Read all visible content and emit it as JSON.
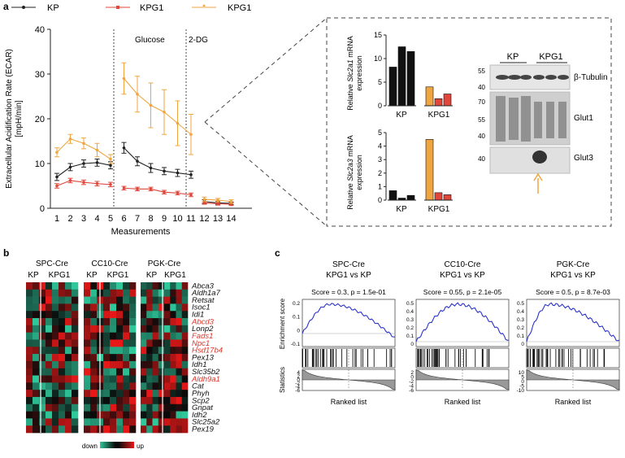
{
  "panel_labels": {
    "a": "a",
    "b": "b",
    "c": "c"
  },
  "colors": {
    "kp": "#222222",
    "kpg1_red": "#e0463a",
    "kpg1_orange": "#f0a640"
  },
  "ecar": {
    "legend": [
      "KP",
      "KPG1",
      "KPG1"
    ],
    "ylabel_line1": "Extracellular Acidification Rate (ECAR)",
    "ylabel_line2": "[mpH/min]",
    "xlabel": "Measurements",
    "phase_labels": [
      "Glucose",
      "2-DG"
    ],
    "yticks": [
      "0",
      "10",
      "20",
      "30",
      "40"
    ],
    "xticks": [
      "1",
      "2",
      "3",
      "4",
      "5",
      "6",
      "7",
      "8",
      "9",
      "10",
      "11",
      "12",
      "13",
      "14"
    ]
  },
  "chart_data": [
    {
      "type": "line",
      "xlabel": "Measurements",
      "ylabel": "Extracellular Acidification Rate (ECAR) [mpH/min]",
      "x": [
        1,
        2,
        3,
        4,
        5,
        6,
        7,
        8,
        9,
        10,
        11,
        12,
        13,
        14
      ],
      "ylim": [
        0,
        40
      ],
      "series": [
        {
          "name": "KP",
          "values": [
            7,
            9.2,
            10,
            10.2,
            9.6,
            13.5,
            10.5,
            9,
            8.3,
            7.9,
            7.5,
            1.5,
            1.2,
            1.1
          ],
          "errors": [
            0.8,
            0.8,
            0.8,
            0.8,
            0.8,
            1.2,
            1.0,
            1.0,
            0.8,
            0.8,
            0.8,
            0.4,
            0.3,
            0.3
          ]
        },
        {
          "name": "KPG1",
          "values": [
            5,
            6.2,
            5.8,
            5.5,
            5.3,
            4.5,
            4.3,
            4.3,
            3.6,
            3.4,
            3,
            1.2,
            1,
            0.9
          ],
          "errors": [
            0.5,
            0.5,
            0.5,
            0.5,
            0.5,
            0.4,
            0.4,
            0.4,
            0.4,
            0.4,
            0.4,
            0.3,
            0.3,
            0.3
          ]
        },
        {
          "name": "KPG1",
          "values": [
            12.5,
            15.5,
            14.5,
            13,
            11,
            29,
            25.5,
            23,
            21.5,
            19,
            16.5,
            2,
            1.8,
            1.5
          ],
          "errors": [
            1,
            1,
            1.2,
            1.5,
            1,
            3.5,
            4,
            5,
            5,
            5,
            4.5,
            0.5,
            0.4,
            0.4
          ]
        }
      ]
    },
    {
      "type": "bar",
      "ylabel": "Relative Slc2a1 mRNA expression",
      "categories": [
        "KP",
        "KP",
        "KP",
        "KPG1",
        "KPG1",
        "KPG1"
      ],
      "values": [
        8.2,
        12.5,
        11.5,
        4,
        1.5,
        2.5
      ],
      "ylim": [
        0,
        15
      ]
    },
    {
      "type": "bar",
      "ylabel": "Relative Slc2a3 mRNA expression",
      "categories": [
        "KP",
        "KP",
        "KP",
        "KPG1",
        "KPG1",
        "KPG1"
      ],
      "values": [
        0.7,
        0.15,
        0.35,
        4.5,
        0.55,
        0.4
      ],
      "ylim": [
        0,
        5
      ]
    },
    {
      "type": "line",
      "title": "SPC-Cre KPG1 vs KP",
      "ylabel": "Enrichment score",
      "annotation": "Score = 0.3, p = 1.5e-01",
      "yticks": [
        "0.2",
        "0.1",
        "0",
        "-0.1"
      ],
      "stat_yticks": [
        "4",
        "2",
        "0",
        "-2",
        "-4",
        "-6"
      ],
      "xlabel": "Ranked list"
    },
    {
      "type": "line",
      "title": "CC10-Cre KPG1 vs KP",
      "annotation": "Score = 0.55, p = 2.1e-05",
      "yticks": [
        "0.5",
        "0.4",
        "0.3",
        "0.2",
        "0.1",
        "0"
      ],
      "stat_yticks": [
        "2",
        "0",
        "-2",
        "-4",
        "-6"
      ],
      "xlabel": "Ranked list"
    },
    {
      "type": "line",
      "title": "PGK-Cre KPG1 vs KP",
      "annotation": "Score = 0.5, p = 8.7e-03",
      "yticks": [
        "0.5",
        "0.4",
        "0.3",
        "0.2",
        "0.1",
        "0"
      ],
      "stat_yticks": [
        "10",
        "5",
        "0",
        "-5",
        "-10"
      ],
      "xlabel": "Ranked list"
    }
  ],
  "bars": {
    "ylabel1_prefix": "Relative ",
    "ylabel1_gene": "Slc2a1",
    "ylabel1_suffix": " mRNA",
    "ylabel_line2": "expression",
    "ylabel2_prefix": "Relative ",
    "ylabel2_gene": "Slc2a3",
    "ylabel2_suffix": " mRNA",
    "yticks_top": [
      "0",
      "5",
      "10",
      "15"
    ],
    "yticks_bottom": [
      "0",
      "1",
      "2",
      "3",
      "4",
      "5"
    ],
    "xlabels": [
      "KP",
      "KPG1"
    ]
  },
  "western": {
    "groups": [
      "KP",
      "KPG1"
    ],
    "bands": [
      "β-Tubulin",
      "Glut1",
      "Glut3"
    ],
    "markers": [
      "55",
      "40",
      "70",
      "55",
      "40",
      "40"
    ]
  },
  "heatmap": {
    "groups": [
      "SPC-Cre",
      "CC10-Cre",
      "PGK-Cre"
    ],
    "subgroups": [
      "KP",
      "KPG1"
    ],
    "genes": [
      {
        "name": "Abca3",
        "highlight": false
      },
      {
        "name": "Aldh1a7",
        "highlight": false
      },
      {
        "name": "Retsat",
        "highlight": false
      },
      {
        "name": "Isoc1",
        "highlight": false
      },
      {
        "name": "Idi1",
        "highlight": false
      },
      {
        "name": "Abcd3",
        "highlight": true
      },
      {
        "name": "Lonp2",
        "highlight": false
      },
      {
        "name": "Fads1",
        "highlight": true
      },
      {
        "name": "Npc1",
        "highlight": true
      },
      {
        "name": "Hsd17b4",
        "highlight": true
      },
      {
        "name": "Pex13",
        "highlight": false
      },
      {
        "name": "Idh1",
        "highlight": false
      },
      {
        "name": "Slc35b2",
        "highlight": false
      },
      {
        "name": "Aldh9a1",
        "highlight": true
      },
      {
        "name": "Cat",
        "highlight": false
      },
      {
        "name": "Phyh",
        "highlight": false
      },
      {
        "name": "Scp2",
        "highlight": false
      },
      {
        "name": "Gnpat",
        "highlight": false
      },
      {
        "name": "Idh2",
        "highlight": false
      },
      {
        "name": "Slc25a2",
        "highlight": false
      },
      {
        "name": "Pex19",
        "highlight": false
      }
    ],
    "scale_low": "down",
    "scale_high": "up"
  }
}
